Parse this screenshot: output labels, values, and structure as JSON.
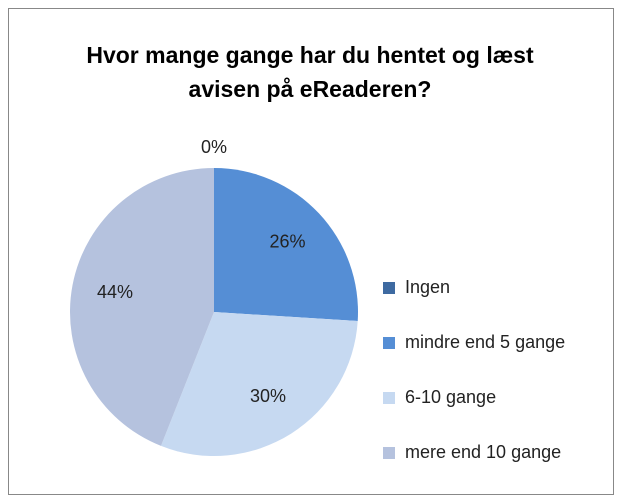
{
  "chart_data": {
    "type": "pie",
    "title": "Hvor mange gange har du hentet og læst avisen på eReaderen?",
    "categories": [
      "Ingen",
      "mindre end 5 gange",
      "6-10 gange",
      "mere end 10 gange"
    ],
    "values": [
      0,
      26,
      30,
      44
    ],
    "value_labels": [
      "0%",
      "26%",
      "30%",
      "44%"
    ],
    "colors": [
      "#3e6aa1",
      "#558ed5",
      "#c6d9f1",
      "#b5c2de"
    ],
    "legend": "right"
  }
}
